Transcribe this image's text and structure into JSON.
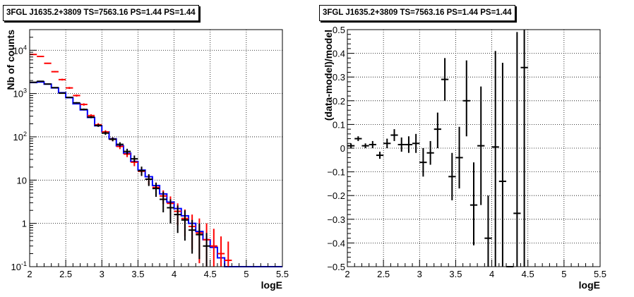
{
  "chart_data": [
    {
      "type": "line",
      "title": "3FGL J1635.2+3809 TS=7563.16 PS=1.44 PS=1.44",
      "xlabel": "logE",
      "ylabel": "Nb of counts",
      "xlim": [
        2,
        5.5
      ],
      "ylim": [
        0.1,
        30000
      ],
      "yscale": "log",
      "grid": true,
      "x_ticks": [
        "2",
        "2.5",
        "3",
        "3.5",
        "4",
        "4.5",
        "5",
        "5.5"
      ],
      "y_ticks": [
        "10^-1",
        "1",
        "10",
        "10^2",
        "10^3",
        "10^4"
      ],
      "series": [
        {
          "kind": "model-step",
          "color": "#0000ff",
          "bin_edges": [
            2.0,
            2.1,
            2.2,
            2.3,
            2.4,
            2.5,
            2.6,
            2.7,
            2.8,
            2.9,
            3.0,
            3.1,
            3.2,
            3.3,
            3.4,
            3.5,
            3.6,
            3.7,
            3.8,
            3.9,
            4.0,
            4.1,
            4.2,
            4.3,
            4.4,
            4.5,
            4.6,
            4.7,
            4.8,
            4.9,
            5.0,
            5.1,
            5.2,
            5.3,
            5.4,
            5.5
          ],
          "values": [
            1800,
            1850,
            1650,
            1350,
            1050,
            800,
            580,
            420,
            280,
            180,
            130,
            90,
            62,
            42,
            27,
            17,
            12,
            7.5,
            4.8,
            3.1,
            2.2,
            1.5,
            1.0,
            0.65,
            0.42,
            0.28,
            0.16,
            0.1,
            0.1,
            0.1,
            0.1,
            0.1,
            0.1,
            0.1,
            0.1
          ]
        },
        {
          "kind": "error-bars",
          "color": "#ff0000",
          "x": [
            2.05,
            2.15,
            2.25,
            2.35,
            2.45,
            2.55,
            2.65,
            2.75,
            2.85,
            2.95,
            3.05,
            3.15,
            3.25,
            3.35,
            3.45,
            3.55,
            3.65,
            3.75,
            3.85,
            3.95,
            4.05,
            4.15,
            4.25,
            4.35,
            4.45,
            4.55,
            4.65,
            4.75
          ],
          "y": [
            8000,
            7200,
            5000,
            3200,
            2100,
            1350,
            900,
            560,
            310,
            190,
            130,
            88,
            60,
            40,
            26,
            16,
            10.5,
            6.8,
            4.3,
            2.9,
            1.9,
            1.3,
            0.85,
            0.6,
            0.42,
            0.3,
            0.2,
            0.14
          ],
          "ylow": [
            7800,
            7000,
            4850,
            3090,
            2000,
            1280,
            850,
            525,
            288,
            173,
            118,
            79,
            52,
            34,
            21,
            12.5,
            7.8,
            4.8,
            2.8,
            1.6,
            0.9,
            0.5,
            0.25,
            0.12,
            0.1,
            0.1,
            0.1,
            0.1
          ],
          "yhigh": [
            8200,
            7400,
            5150,
            3310,
            2200,
            1420,
            950,
            595,
            332,
            207,
            142,
            97,
            68,
            46,
            31,
            19.5,
            13.2,
            8.8,
            5.8,
            4.2,
            2.9,
            2.1,
            1.6,
            1.3,
            1.0,
            0.75,
            0.5,
            0.38
          ]
        },
        {
          "kind": "error-bars",
          "color": "#000000",
          "x": [
            2.05,
            2.15,
            2.25,
            2.35,
            2.45,
            2.55,
            2.65,
            2.75,
            2.85,
            2.95,
            3.05,
            3.15,
            3.25,
            3.35,
            3.45,
            3.55,
            3.65,
            3.75,
            3.85,
            3.95,
            4.05,
            4.15,
            4.25,
            4.35,
            4.45
          ],
          "y": [
            1820,
            1920,
            1660,
            1370,
            1020,
            815,
            610,
            430,
            285,
            183,
            122,
            88,
            67,
            46,
            31,
            16.5,
            10.5,
            6.4,
            3.6,
            2.3,
            1.6,
            1.2,
            0.7,
            0.55,
            0.3
          ],
          "ylow": [
            1780,
            1880,
            1620,
            1335,
            990,
            787,
            586,
            410,
            269,
            170,
            111,
            79,
            59,
            39,
            26,
            12.5,
            7.3,
            4.1,
            1.8,
            1.0,
            0.6,
            0.4,
            0.2,
            0.15,
            0.1
          ],
          "yhigh": [
            1860,
            1960,
            1700,
            1405,
            1050,
            843,
            634,
            450,
            301,
            196,
            133,
            97,
            75,
            53,
            37,
            20.5,
            13.7,
            8.7,
            5.4,
            3.6,
            2.6,
            2.0,
            1.2,
            1.0,
            0.6
          ]
        }
      ]
    },
    {
      "type": "scatter",
      "title": "3FGL J1635.2+3809 TS=7563.16 PS=1.44 PS=1.44",
      "xlabel": "logE",
      "ylabel": "(data-model)/model",
      "xlim": [
        2,
        5.5
      ],
      "ylim": [
        -0.5,
        0.5
      ],
      "grid": true,
      "x_ticks": [
        "2",
        "2.5",
        "3",
        "3.5",
        "4",
        "4.5",
        "5",
        "5.5"
      ],
      "y_ticks": [
        "−0.5",
        "−0.4",
        "−0.3",
        "−0.2",
        "−0.1",
        "0",
        "0.1",
        "0.2",
        "0.3",
        "0.4",
        "0.5"
      ],
      "series": [
        {
          "kind": "error-bars",
          "color": "#000000",
          "x": [
            2.05,
            2.15,
            2.25,
            2.35,
            2.45,
            2.55,
            2.65,
            2.75,
            2.85,
            2.95,
            3.05,
            3.15,
            3.25,
            3.35,
            3.45,
            3.55,
            3.65,
            3.75,
            3.85,
            3.95,
            4.05,
            4.15,
            4.25,
            4.35,
            4.45
          ],
          "y": [
            0.01,
            0.04,
            0.01,
            0.015,
            -0.03,
            0.02,
            0.055,
            0.015,
            0.015,
            0.02,
            -0.06,
            -0.02,
            0.08,
            0.29,
            -0.12,
            -0.04,
            0.2,
            -0.24,
            0.01,
            -0.38,
            0.005,
            -0.14,
            -0.5,
            -0.275,
            0.34
          ],
          "ylow": [
            0.0,
            0.03,
            0.0,
            0.0,
            -0.045,
            0.0,
            0.03,
            -0.015,
            -0.02,
            -0.02,
            -0.12,
            -0.07,
            0.0,
            0.2,
            -0.22,
            -0.17,
            0.05,
            -0.41,
            -0.24,
            -0.5,
            -0.5,
            -0.5,
            -0.5,
            -0.5,
            -0.5
          ],
          "yhigh": [
            0.02,
            0.05,
            0.02,
            0.03,
            -0.015,
            0.04,
            0.08,
            0.045,
            0.05,
            0.06,
            0.0,
            0.03,
            0.15,
            0.38,
            -0.02,
            0.09,
            0.37,
            -0.06,
            0.26,
            -0.2,
            0.41,
            0.36,
            -0.5,
            0.49,
            0.5
          ]
        }
      ]
    }
  ]
}
